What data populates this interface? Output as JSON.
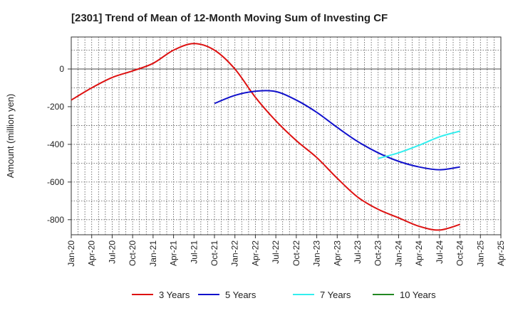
{
  "chart_data": {
    "type": "line",
    "title": "[2301]  Trend of Mean of 12-Month Moving Sum of Investing CF",
    "xlabel": "",
    "ylabel": "Amount (million yen)",
    "ylim": [
      -880,
      170
    ],
    "yticks": [
      0,
      -200,
      -400,
      -600,
      -800
    ],
    "x_ticks": [
      "Jan-20",
      "Apr-20",
      "Jul-20",
      "Oct-20",
      "Jan-21",
      "Apr-21",
      "Jul-21",
      "Oct-21",
      "Jan-22",
      "Apr-22",
      "Jul-22",
      "Oct-22",
      "Jan-23",
      "Apr-23",
      "Jul-23",
      "Oct-23",
      "Jan-24",
      "Apr-24",
      "Jul-24",
      "Oct-24",
      "Jan-25",
      "Apr-25"
    ],
    "grid": true,
    "legend_position": "bottom",
    "series": [
      {
        "name": "3 Years",
        "color": "#dd1111",
        "x": [
          "Jan-20",
          "Apr-20",
          "Jul-20",
          "Oct-20",
          "Jan-21",
          "Apr-21",
          "Jul-21",
          "Oct-21",
          "Jan-22",
          "Apr-22",
          "Jul-22",
          "Oct-22",
          "Jan-23",
          "Apr-23",
          "Jul-23",
          "Oct-23",
          "Jan-24",
          "Apr-24",
          "Jul-24",
          "Oct-24"
        ],
        "values": [
          -165,
          -100,
          -45,
          -10,
          30,
          100,
          135,
          100,
          0,
          -150,
          -275,
          -380,
          -470,
          -580,
          -680,
          -745,
          -790,
          -835,
          -855,
          -825
        ]
      },
      {
        "name": "5 Years",
        "color": "#1111cc",
        "x": [
          "Oct-21",
          "Jan-22",
          "Apr-22",
          "Jul-22",
          "Oct-22",
          "Jan-23",
          "Apr-23",
          "Jul-23",
          "Oct-23",
          "Jan-24",
          "Apr-24",
          "Jul-24",
          "Oct-24"
        ],
        "values": [
          -183,
          -140,
          -118,
          -120,
          -165,
          -230,
          -310,
          -385,
          -445,
          -490,
          -520,
          -535,
          -520
        ]
      },
      {
        "name": "7 Years",
        "color": "#33eeee",
        "x": [
          "Oct-23",
          "Jan-24",
          "Apr-24",
          "Jul-24",
          "Oct-24"
        ],
        "values": [
          -475,
          -445,
          -405,
          -360,
          -330
        ]
      },
      {
        "name": "10 Years",
        "color": "#228822",
        "x": [],
        "values": []
      }
    ]
  }
}
